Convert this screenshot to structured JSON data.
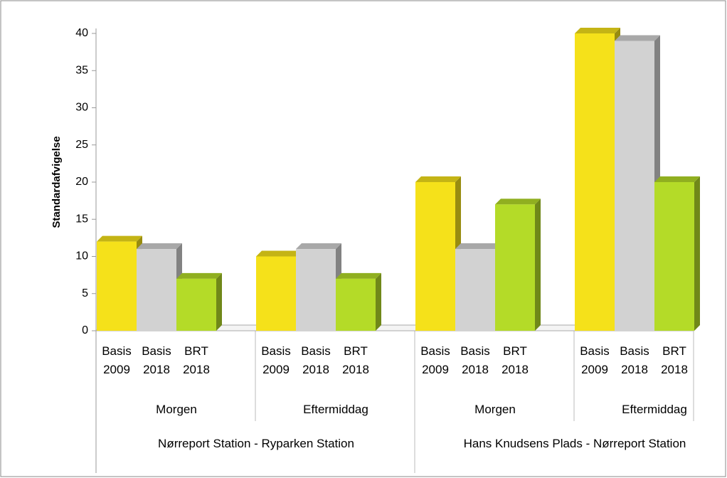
{
  "chart_data": {
    "type": "bar3d",
    "y_label": "Standardafvigelse",
    "categories": [
      "Basis 2009",
      "Basis 2018",
      "BRT 2018",
      "Basis 2009",
      "Basis 2018",
      "BRT 2018",
      "Basis 2009",
      "Basis 2018",
      "BRT 2018",
      "Basis 2009",
      "Basis 2018",
      "BRT 2018"
    ],
    "values": [
      12,
      11,
      7,
      10,
      11,
      7,
      20,
      11,
      17,
      40,
      39,
      20
    ],
    "colors": [
      "#f5e11a",
      "#d2d2d2",
      "#b4db28",
      "#f5e11a",
      "#d2d2d2",
      "#b4db28",
      "#f5e11a",
      "#d2d2d2",
      "#b4db28",
      "#f5e11a",
      "#d2d2d2",
      "#b4db28"
    ],
    "periods": [
      "Morgen",
      "Eftermiddag",
      "Morgen",
      "Eftermiddag"
    ],
    "routes": [
      "Nørreport Station - Ryparken Station",
      "Hans Knudsens Plads - Nørreport Station"
    ],
    "ylim": [
      0,
      40
    ],
    "yticks": [
      0,
      5,
      10,
      15,
      20,
      25,
      30,
      35,
      40
    ]
  }
}
